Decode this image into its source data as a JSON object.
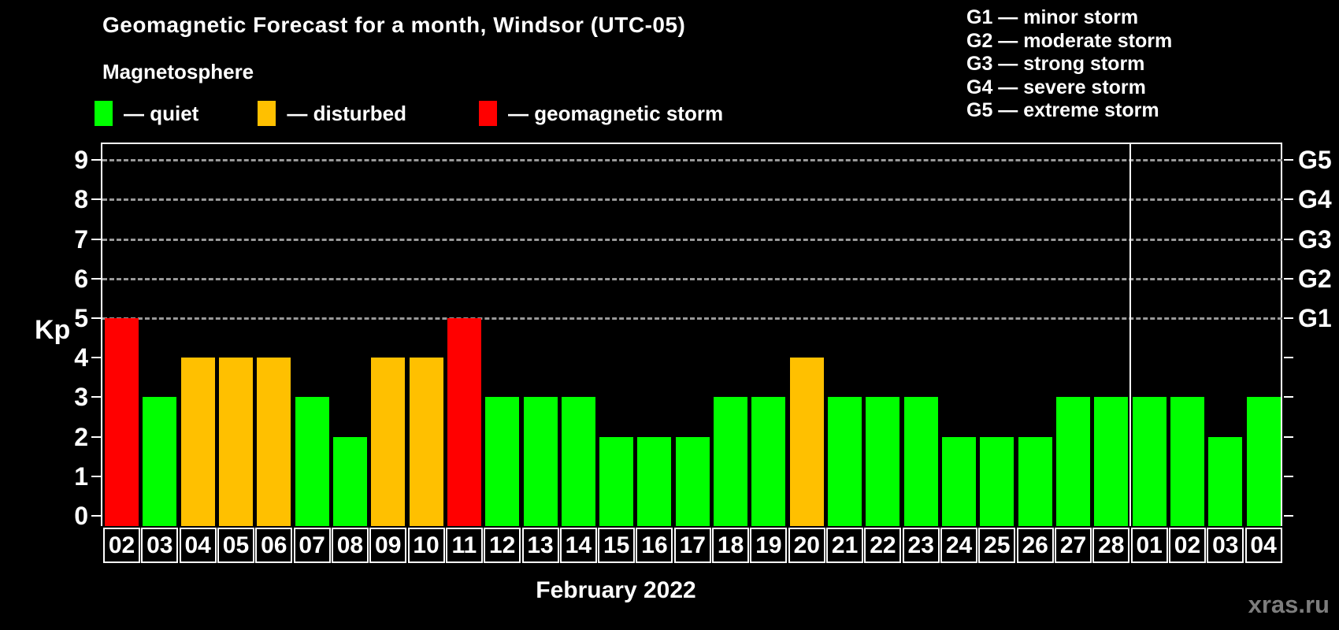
{
  "title": "Geomagnetic Forecast for a month, Windsor (UTC-05)",
  "subtitle": "Magnetosphere",
  "legend": [
    {
      "state": "quiet",
      "label": "— quiet",
      "color": "#00ff00"
    },
    {
      "state": "disturbed",
      "label": "— disturbed",
      "color": "#ffc000"
    },
    {
      "state": "storm",
      "label": "— geomagnetic storm",
      "color": "#ff0000"
    }
  ],
  "g_legend": [
    "G1 — minor storm",
    "G2 — moderate storm",
    "G3 — strong storm",
    "G4 — severe storm",
    "G5 — extreme storm"
  ],
  "y_axis": {
    "label": "Kp",
    "ticks": [
      0,
      1,
      2,
      3,
      4,
      5,
      6,
      7,
      8,
      9
    ]
  },
  "right_axis_labels": [
    {
      "kp": 5,
      "label": "G1"
    },
    {
      "kp": 6,
      "label": "G2"
    },
    {
      "kp": 7,
      "label": "G3"
    },
    {
      "kp": 8,
      "label": "G4"
    },
    {
      "kp": 9,
      "label": "G5"
    }
  ],
  "x_axis_label": "February 2022",
  "watermark": "xras.ru",
  "colors": {
    "background": "#000000",
    "axis": "#ffffff",
    "grid": "#999999",
    "watermark": "#7d7d7d"
  },
  "chart_data": {
    "type": "bar",
    "title": "Geomagnetic Forecast for a month, Windsor (UTC-05)",
    "xlabel": "February 2022",
    "ylabel": "Kp",
    "ylim": [
      0,
      9
    ],
    "gridlines_at": [
      5,
      6,
      7,
      8,
      9
    ],
    "legend_position": "top-left",
    "categories": [
      "02",
      "03",
      "04",
      "05",
      "06",
      "07",
      "08",
      "09",
      "10",
      "11",
      "12",
      "13",
      "14",
      "15",
      "16",
      "17",
      "18",
      "19",
      "20",
      "21",
      "22",
      "23",
      "24",
      "25",
      "26",
      "27",
      "28",
      "01",
      "02",
      "03",
      "04"
    ],
    "values": [
      5,
      3,
      4,
      4,
      4,
      3,
      2,
      4,
      4,
      5,
      3,
      3,
      3,
      2,
      2,
      2,
      3,
      3,
      4,
      3,
      3,
      3,
      2,
      2,
      2,
      3,
      3,
      3,
      3,
      2,
      3
    ],
    "states": [
      "storm",
      "quiet",
      "disturbed",
      "disturbed",
      "disturbed",
      "quiet",
      "quiet",
      "disturbed",
      "disturbed",
      "storm",
      "quiet",
      "quiet",
      "quiet",
      "quiet",
      "quiet",
      "quiet",
      "quiet",
      "quiet",
      "disturbed",
      "quiet",
      "quiet",
      "quiet",
      "quiet",
      "quiet",
      "quiet",
      "quiet",
      "quiet",
      "quiet",
      "quiet",
      "quiet",
      "quiet"
    ],
    "month_separator_after_index": 26,
    "state_colors": {
      "quiet": "#00ff00",
      "disturbed": "#ffc000",
      "storm": "#ff0000"
    }
  }
}
